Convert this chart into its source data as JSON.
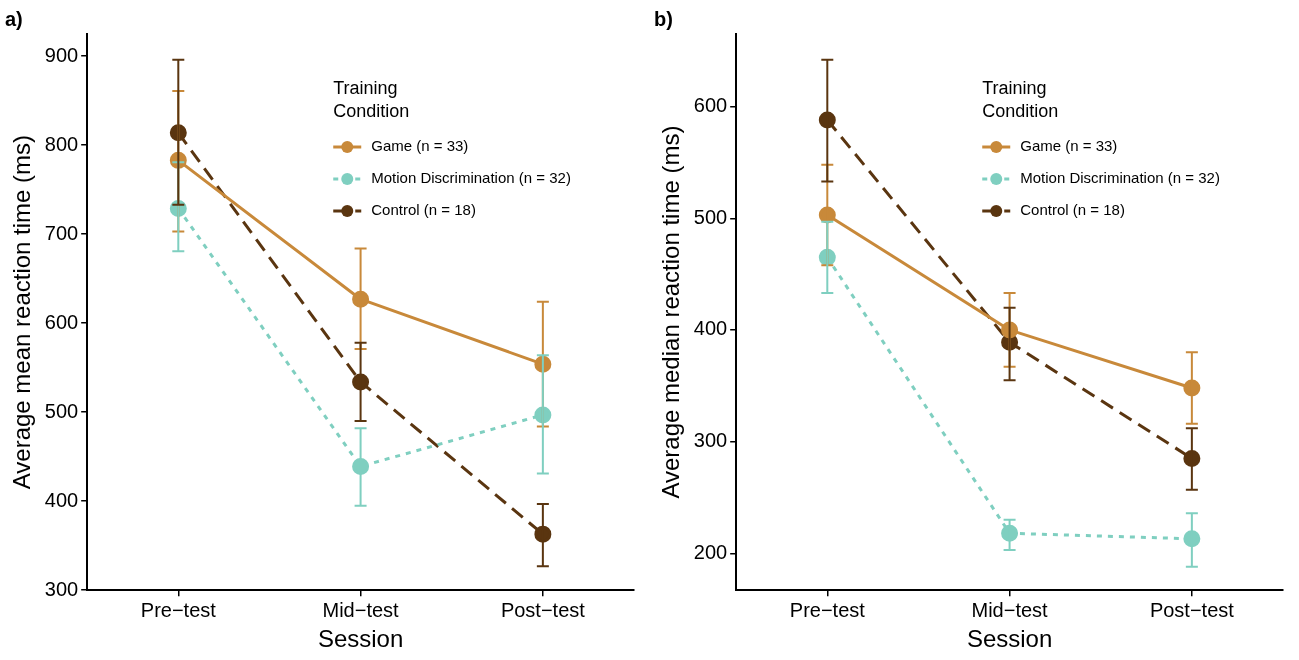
{
  "chart_data": [
    {
      "type": "line",
      "title": "a)",
      "xlabel": "Session",
      "ylabel": "Average mean reaction time (ms)",
      "legend_title": "Training Condition",
      "categories": [
        "Pre−test",
        "Mid−test",
        "Post−test"
      ],
      "ylim": [
        300,
        925
      ],
      "yticks": [
        300,
        400,
        500,
        600,
        700,
        800,
        900
      ],
      "grid": false,
      "legend": "top right",
      "marker": "circle",
      "series": [
        {
          "name": "Game (n = 33)",
          "color": "#c8893a",
          "line_style": "solid",
          "values": [
            783,
            627,
            554
          ],
          "errors": [
            [
              703,
              861
            ],
            [
              571,
              684
            ],
            [
              484,
              624
            ]
          ]
        },
        {
          "name": "Motion Discrimination (n = 32)",
          "color": "#7fcfc0",
          "line_style": "dotted",
          "values": [
            729,
            439,
            497
          ],
          "errors": [
            [
              681,
              781
            ],
            [
              395,
              482
            ],
            [
              431,
              564
            ]
          ]
        },
        {
          "name": "Control (n = 18)",
          "color": "#5a3510",
          "line_style": "dashed",
          "values": [
            814,
            534,
            363
          ],
          "errors": [
            [
              733,
              896
            ],
            [
              490,
              578
            ],
            [
              327,
              397
            ]
          ]
        }
      ]
    },
    {
      "type": "line",
      "title": "b)",
      "xlabel": "Session",
      "ylabel": "Average median reaction time (ms)",
      "legend_title": "Training Condition",
      "categories": [
        "Pre−test",
        "Mid−test",
        "Post−test"
      ],
      "ylim": [
        167,
        665
      ],
      "yticks": [
        200,
        300,
        400,
        500,
        600
      ],
      "grid": false,
      "legend": "top right",
      "marker": "circle",
      "series": [
        {
          "name": "Game (n = 33)",
          "color": "#c8893a",
          "line_style": "solid",
          "values": [
            503,
            400,
            348
          ],
          "errors": [
            [
              458,
              548
            ],
            [
              367,
              433
            ],
            [
              316,
              380
            ]
          ]
        },
        {
          "name": "Motion Discrimination (n = 32)",
          "color": "#7fcfc0",
          "line_style": "dotted",
          "values": [
            465,
            218,
            213
          ],
          "errors": [
            [
              433,
              497
            ],
            [
              203,
              230
            ],
            [
              188,
              236
            ]
          ]
        },
        {
          "name": "Control (n = 18)",
          "color": "#5a3510",
          "line_style": "dashed",
          "values": [
            588,
            389,
            285
          ],
          "errors": [
            [
              533,
              642
            ],
            [
              355,
              420
            ],
            [
              257,
              312
            ]
          ]
        }
      ]
    }
  ]
}
